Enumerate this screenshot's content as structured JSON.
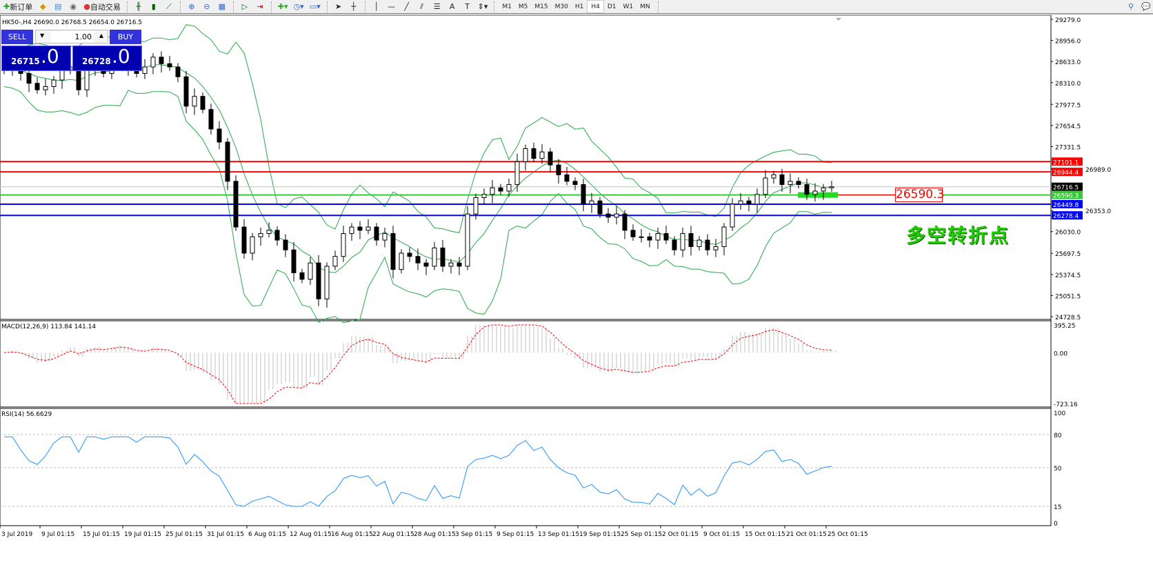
{
  "toolbar": {
    "new_order": "新订单",
    "auto_trading": "自动交易",
    "icons": [
      "new-order-icon",
      "market-watch-icon",
      "data-window-icon",
      "signals-icon",
      "auto-trading-icon",
      "bar-chart-icon",
      "candlestick-icon",
      "line-chart-icon",
      "zoom-in-icon",
      "zoom-out-icon",
      "tile-windows-icon",
      "autoscroll-icon",
      "chart-shift-icon",
      "indicators-icon",
      "periods-icon",
      "templates-icon",
      "cursor-icon",
      "crosshair-icon",
      "vertical-line-icon",
      "horizontal-line-icon",
      "trendline-icon",
      "fibonacci-icon",
      "text-icon",
      "text-label-icon",
      "arrows-icon"
    ],
    "timeframes": [
      "M1",
      "M5",
      "M15",
      "M30",
      "H1",
      "H4",
      "D1",
      "W1",
      "MN"
    ],
    "active_timeframe": "H4"
  },
  "symbol_info": "HK50-,H4  26690.0 26768.5 26654.0 26716.5",
  "trade_panel": {
    "sell": "SELL",
    "buy": "BUY",
    "lot": "1.00",
    "sell_small": "26715",
    "sell_big": ".0",
    "buy_small": "26728",
    "buy_big": ".0"
  },
  "annotation": "多空转折点",
  "marked_price": "26590.3",
  "price_axis": [
    "29279.0",
    "28956.0",
    "28633.0",
    "28310.0",
    "27977.5",
    "27654.5",
    "27331.5",
    "26030.0",
    "25697.5",
    "25374.5",
    "25051.5",
    "24728.5"
  ],
  "levels": [
    {
      "value": 27101.1,
      "label": "27101.1",
      "color": "#ff0000"
    },
    {
      "value": 26944.4,
      "label": "26944.4",
      "color": "#ff0000"
    },
    {
      "value": 26716.5,
      "label": "26716.5",
      "color": "#000000",
      "line": "#c0c0c0"
    },
    {
      "value": 26590.3,
      "label": "26590.3",
      "color": "#33cc33"
    },
    {
      "value": 26449.8,
      "label": "26449.8",
      "color": "#0000ff"
    },
    {
      "value": 26278.4,
      "label": "26278.4",
      "color": "#0000ff"
    }
  ],
  "hidden_axis_labels": [
    "26989.0",
    "26353.0"
  ],
  "macd": {
    "title": "MACD(12,26,9) 113.84 141.14",
    "axis": [
      "395.25",
      "0.00",
      "-723.16"
    ],
    "range": [
      -723.16,
      395.25
    ]
  },
  "rsi": {
    "title": "RSI(14) 56.6629",
    "axis": [
      "100",
      "80",
      "50",
      "15",
      "0"
    ],
    "levels": [
      80,
      50,
      15
    ]
  },
  "time_axis": [
    "3 Jul 2019",
    "9 Jul 01:15",
    "15 Jul 01:15",
    "19 Jul 01:15",
    "25 Jul 01:15",
    "31 Jul 01:15",
    "6 Aug 01:15",
    "12 Aug 01:15",
    "16 Aug 01:15",
    "22 Aug 01:15",
    "28 Aug 01:15",
    "3 Sep 01:15",
    "9 Sep 01:15",
    "13 Sep 01:15",
    "19 Sep 01:15",
    "25 Sep 01:15",
    "2 Oct 01:15",
    "9 Oct 01:15",
    "15 Oct 01:15",
    "21 Oct 01:15",
    "25 Oct 01:15"
  ],
  "chart_data": {
    "type": "candlestick",
    "price_range": [
      24728.5,
      29279.0
    ],
    "closes": [
      28500,
      28550,
      28450,
      28300,
      28200,
      28250,
      28350,
      28500,
      28550,
      28200,
      28600,
      28550,
      28450,
      28600,
      28650,
      28550,
      28450,
      28550,
      28700,
      28600,
      28550,
      28400,
      27950,
      28100,
      27900,
      27600,
      27400,
      26800,
      26100,
      25700,
      25950,
      26000,
      26050,
      25900,
      25750,
      25400,
      25300,
      25550,
      25000,
      25500,
      25650,
      26000,
      26100,
      26050,
      26100,
      25900,
      26000,
      25450,
      25700,
      25650,
      25550,
      25500,
      25780,
      25500,
      25550,
      25500,
      26300,
      26550,
      26600,
      26700,
      26650,
      26750,
      27100,
      27300,
      27150,
      27250,
      27050,
      26900,
      26800,
      26750,
      26450,
      26500,
      26300,
      26250,
      26300,
      26050,
      25950,
      25950,
      25900,
      26000,
      25900,
      25750,
      26000,
      25800,
      25900,
      25750,
      25800,
      26100,
      26450,
      26500,
      26450,
      26600,
      26850,
      26900,
      26750,
      26800,
      26750,
      26600,
      26650,
      26700,
      26716.5
    ],
    "colors": {
      "bands": "#22aa44",
      "macd_hist": "#c0c0c0",
      "macd_signal": "#ff0000",
      "rsi": "#1e90ff"
    }
  }
}
